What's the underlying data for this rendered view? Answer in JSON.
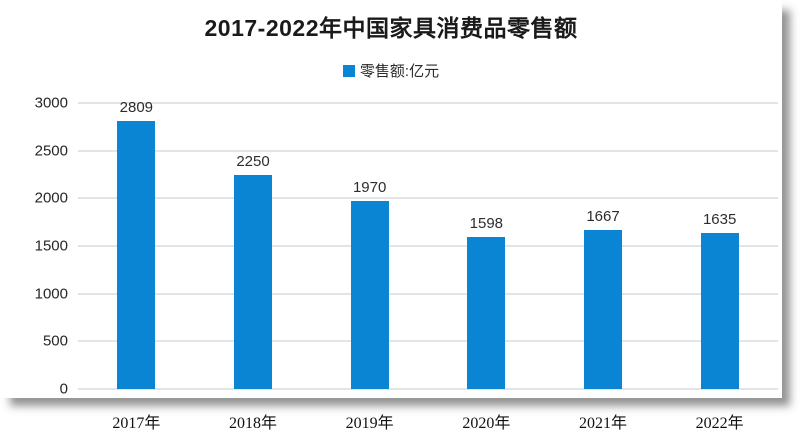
{
  "chart_data": {
    "type": "bar",
    "title": "2017-2022年中国家具消费品零售额",
    "legend": "零售额:亿元",
    "legend_position": "top-center",
    "categories": [
      "2017年",
      "2018年",
      "2019年",
      "2020年",
      "2021年",
      "2022年"
    ],
    "values": [
      2809,
      2250,
      1970,
      1598,
      1667,
      1635
    ],
    "ylim": [
      0,
      3000
    ],
    "yticks": [
      0,
      500,
      1000,
      1500,
      2000,
      2500,
      3000
    ],
    "grid": true,
    "colors": {
      "bar": "#0a85d4",
      "gridline": "#e4e4e4",
      "title_text": "#1a1a1a",
      "label_text": "#2d2d2d"
    }
  }
}
